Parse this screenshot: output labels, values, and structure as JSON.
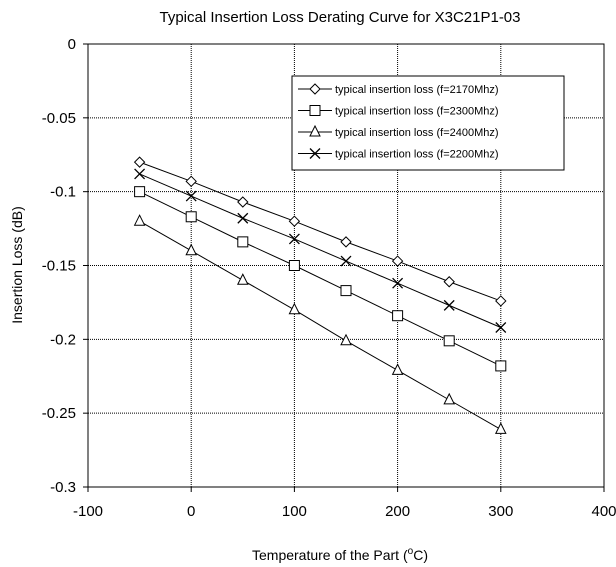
{
  "chart_data": {
    "type": "line",
    "title": "Typical Insertion Loss Derating Curve for X3C21P1-03",
    "xlabel_prefix": "Temperature of the Part (",
    "xlabel_sup": "o",
    "xlabel_suffix": "C)",
    "ylabel": "Insertion Loss (dB)",
    "xlim": [
      -100,
      400
    ],
    "ylim": [
      -0.3,
      0
    ],
    "xticks": [
      -100,
      0,
      100,
      200,
      300,
      400
    ],
    "xtick_labels": [
      "-100",
      "0",
      "100",
      "200",
      "300",
      "400"
    ],
    "yticks": [
      0,
      -0.05,
      -0.1,
      -0.15,
      -0.2,
      -0.25,
      -0.3
    ],
    "ytick_labels": [
      "0",
      "-0.05",
      "-0.1",
      "-0.15",
      "-0.2",
      "-0.25",
      "-0.3"
    ],
    "grid": true,
    "legend_position": "top-right",
    "x": [
      -50,
      0,
      50,
      100,
      150,
      200,
      250,
      300
    ],
    "series": [
      {
        "name": "typical insertion loss (f=2170Mhz)",
        "marker": "diamond",
        "values": [
          -0.08,
          -0.093,
          -0.107,
          -0.12,
          -0.134,
          -0.147,
          -0.161,
          -0.174
        ]
      },
      {
        "name": "typical insertion loss (f=2300Mhz)",
        "marker": "square",
        "values": [
          -0.1,
          -0.117,
          -0.134,
          -0.15,
          -0.167,
          -0.184,
          -0.201,
          -0.218
        ]
      },
      {
        "name": "typical insertion loss (f=2400Mhz)",
        "marker": "triangle",
        "values": [
          -0.12,
          -0.14,
          -0.16,
          -0.18,
          -0.201,
          -0.221,
          -0.241,
          -0.261
        ]
      },
      {
        "name": "typical insertion loss (f=2200Mhz)",
        "marker": "x",
        "values": [
          -0.088,
          -0.103,
          -0.118,
          -0.132,
          -0.147,
          -0.162,
          -0.177,
          -0.192
        ]
      }
    ]
  }
}
